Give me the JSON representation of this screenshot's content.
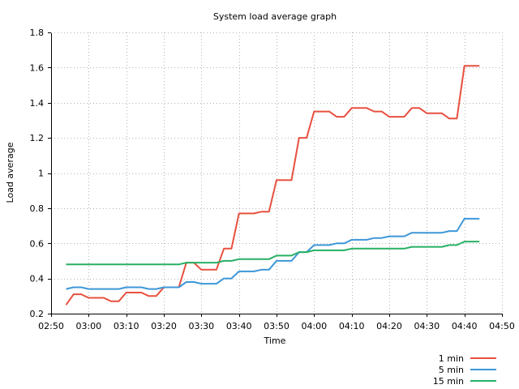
{
  "chart_data": {
    "type": "line",
    "title": "System load average graph",
    "xlabel": "Time",
    "ylabel": "Load average",
    "x_ticks": [
      "02:50",
      "03:00",
      "03:10",
      "03:20",
      "03:30",
      "03:40",
      "03:50",
      "04:00",
      "04:10",
      "04:20",
      "04:30",
      "04:40",
      "04:50"
    ],
    "x_tick_minutes": [
      170,
      180,
      190,
      200,
      210,
      220,
      230,
      240,
      250,
      260,
      270,
      280,
      290
    ],
    "xlim_minutes": [
      170,
      290
    ],
    "y_ticks": [
      "0.2",
      "0.4",
      "0.6",
      "0.8",
      "1",
      "1.2",
      "1.4",
      "1.6",
      "1.8"
    ],
    "ylim": [
      0.2,
      1.8
    ],
    "grid": true,
    "legend_position": "bottom-right",
    "series": [
      {
        "name": "1 min",
        "color": "#e8503f",
        "x": [
          "02:54",
          "02:56",
          "02:58",
          "03:00",
          "03:02",
          "03:04",
          "03:06",
          "03:08",
          "03:10",
          "03:12",
          "03:14",
          "03:16",
          "03:18",
          "03:20",
          "03:22",
          "03:24",
          "03:26",
          "03:28",
          "03:30",
          "03:32",
          "03:34",
          "03:36",
          "03:38",
          "03:40",
          "03:42",
          "03:44",
          "03:46",
          "03:48",
          "03:50",
          "03:52",
          "03:54",
          "03:56",
          "03:58",
          "04:00",
          "04:02",
          "04:04",
          "04:06",
          "04:08",
          "04:10",
          "04:12",
          "04:14",
          "04:16",
          "04:18",
          "04:20",
          "04:22",
          "04:24",
          "04:26",
          "04:28",
          "04:30",
          "04:32",
          "04:34",
          "04:36",
          "04:38",
          "04:40",
          "04:42",
          "04:44"
        ],
        "y": [
          0.25,
          0.31,
          0.31,
          0.29,
          0.29,
          0.29,
          0.27,
          0.27,
          0.32,
          0.32,
          0.32,
          0.3,
          0.3,
          0.35,
          0.35,
          0.35,
          0.49,
          0.49,
          0.45,
          0.45,
          0.45,
          0.57,
          0.57,
          0.77,
          0.77,
          0.77,
          0.78,
          0.78,
          0.96,
          0.96,
          0.96,
          1.2,
          1.2,
          1.35,
          1.35,
          1.35,
          1.32,
          1.32,
          1.37,
          1.37,
          1.37,
          1.35,
          1.35,
          1.32,
          1.32,
          1.32,
          1.37,
          1.37,
          1.34,
          1.34,
          1.34,
          1.31,
          1.31,
          1.61,
          1.61,
          1.61
        ]
      },
      {
        "name": "5 min",
        "color": "#3d97d8",
        "x": [
          "02:54",
          "02:56",
          "02:58",
          "03:00",
          "03:02",
          "03:04",
          "03:06",
          "03:08",
          "03:10",
          "03:12",
          "03:14",
          "03:16",
          "03:18",
          "03:20",
          "03:22",
          "03:24",
          "03:26",
          "03:28",
          "03:30",
          "03:32",
          "03:34",
          "03:36",
          "03:38",
          "03:40",
          "03:42",
          "03:44",
          "03:46",
          "03:48",
          "03:50",
          "03:52",
          "03:54",
          "03:56",
          "03:58",
          "04:00",
          "04:02",
          "04:04",
          "04:06",
          "04:08",
          "04:10",
          "04:12",
          "04:14",
          "04:16",
          "04:18",
          "04:20",
          "04:22",
          "04:24",
          "04:26",
          "04:28",
          "04:30",
          "04:32",
          "04:34",
          "04:36",
          "04:38",
          "04:40",
          "04:42",
          "04:44"
        ],
        "y": [
          0.34,
          0.35,
          0.35,
          0.34,
          0.34,
          0.34,
          0.34,
          0.34,
          0.35,
          0.35,
          0.35,
          0.34,
          0.34,
          0.35,
          0.35,
          0.35,
          0.38,
          0.38,
          0.37,
          0.37,
          0.37,
          0.4,
          0.4,
          0.44,
          0.44,
          0.44,
          0.45,
          0.45,
          0.5,
          0.5,
          0.5,
          0.55,
          0.55,
          0.59,
          0.59,
          0.59,
          0.6,
          0.6,
          0.62,
          0.62,
          0.62,
          0.63,
          0.63,
          0.64,
          0.64,
          0.64,
          0.66,
          0.66,
          0.66,
          0.66,
          0.66,
          0.67,
          0.67,
          0.74,
          0.74,
          0.74
        ]
      },
      {
        "name": "15 min",
        "color": "#27b065",
        "x": [
          "02:54",
          "02:56",
          "02:58",
          "03:00",
          "03:02",
          "03:04",
          "03:06",
          "03:08",
          "03:10",
          "03:12",
          "03:14",
          "03:16",
          "03:18",
          "03:20",
          "03:22",
          "03:24",
          "03:26",
          "03:28",
          "03:30",
          "03:32",
          "03:34",
          "03:36",
          "03:38",
          "03:40",
          "03:42",
          "03:44",
          "03:46",
          "03:48",
          "03:50",
          "03:52",
          "03:54",
          "03:56",
          "03:58",
          "04:00",
          "04:02",
          "04:04",
          "04:06",
          "04:08",
          "04:10",
          "04:12",
          "04:14",
          "04:16",
          "04:18",
          "04:20",
          "04:22",
          "04:24",
          "04:26",
          "04:28",
          "04:30",
          "04:32",
          "04:34",
          "04:36",
          "04:38",
          "04:40",
          "04:42",
          "04:44"
        ],
        "y": [
          0.48,
          0.48,
          0.48,
          0.48,
          0.48,
          0.48,
          0.48,
          0.48,
          0.48,
          0.48,
          0.48,
          0.48,
          0.48,
          0.48,
          0.48,
          0.48,
          0.49,
          0.49,
          0.49,
          0.49,
          0.49,
          0.5,
          0.5,
          0.51,
          0.51,
          0.51,
          0.51,
          0.51,
          0.53,
          0.53,
          0.53,
          0.55,
          0.55,
          0.56,
          0.56,
          0.56,
          0.56,
          0.56,
          0.57,
          0.57,
          0.57,
          0.57,
          0.57,
          0.57,
          0.57,
          0.57,
          0.58,
          0.58,
          0.58,
          0.58,
          0.58,
          0.59,
          0.59,
          0.61,
          0.61,
          0.61
        ]
      }
    ]
  }
}
